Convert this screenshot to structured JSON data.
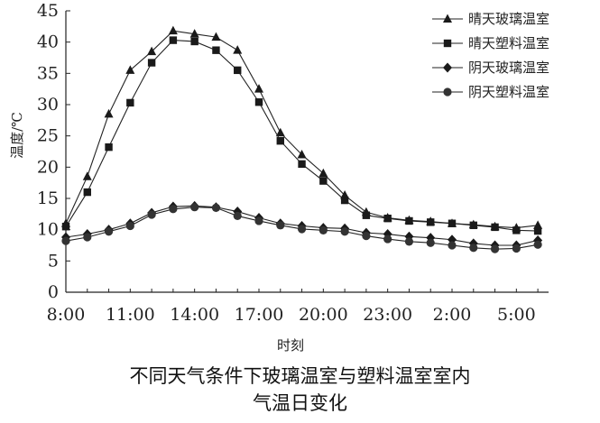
{
  "chart_data": {
    "type": "line",
    "xlabel": "时刻",
    "ylabel": "温度/℃",
    "ylim": [
      0,
      45
    ],
    "yticks": [
      0,
      5,
      10,
      15,
      20,
      25,
      30,
      35,
      40,
      45
    ],
    "xticks": [
      "8:00",
      "11:00",
      "14:00",
      "17:00",
      "20:00",
      "23:00",
      "2:00",
      "5:00"
    ],
    "x_hours": [
      8,
      9,
      10,
      11,
      12,
      13,
      14,
      15,
      16,
      17,
      18,
      19,
      20,
      21,
      22,
      23,
      24,
      25,
      26,
      27,
      28,
      29,
      30
    ],
    "grid": false,
    "legend_position": "top-right",
    "series": [
      {
        "name": "晴天玻璃温室",
        "marker": "triangle",
        "values": [
          11.0,
          18.5,
          28.5,
          35.5,
          38.5,
          41.8,
          41.3,
          40.8,
          38.7,
          32.5,
          25.5,
          22.0,
          19.0,
          15.5,
          12.8,
          11.9,
          11.5,
          11.3,
          11.0,
          10.8,
          10.5,
          10.3,
          10.7
        ]
      },
      {
        "name": "晴天塑料温室",
        "marker": "square",
        "values": [
          10.5,
          16.0,
          23.2,
          30.3,
          36.7,
          40.3,
          40.1,
          38.7,
          35.5,
          30.4,
          24.2,
          20.5,
          17.8,
          14.7,
          12.3,
          11.8,
          11.4,
          11.2,
          11.0,
          10.7,
          10.4,
          9.9,
          9.8
        ]
      },
      {
        "name": "阴天玻璃温室",
        "marker": "diamond",
        "values": [
          8.8,
          9.3,
          10.0,
          11.0,
          12.7,
          13.7,
          13.8,
          13.6,
          12.9,
          11.9,
          11.0,
          10.6,
          10.3,
          10.2,
          9.5,
          9.3,
          8.9,
          8.7,
          8.4,
          7.8,
          7.5,
          7.5,
          8.3
        ]
      },
      {
        "name": "阴天塑料温室",
        "marker": "circle",
        "values": [
          8.2,
          8.8,
          9.7,
          10.6,
          12.4,
          13.3,
          13.6,
          13.5,
          12.2,
          11.4,
          10.7,
          10.1,
          9.9,
          9.7,
          9.0,
          8.5,
          8.1,
          7.9,
          7.5,
          7.1,
          6.9,
          7.0,
          7.6
        ]
      }
    ]
  },
  "caption": {
    "line1": "不同天气条件下玻璃温室与塑料温室室内",
    "line2": "气温日变化"
  }
}
